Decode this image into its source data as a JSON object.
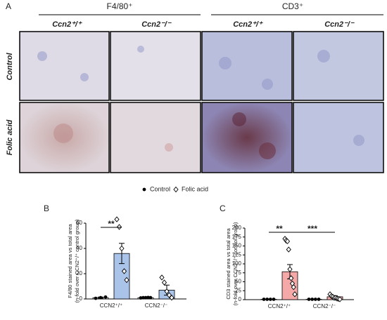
{
  "panel_a": {
    "label": "A",
    "groups": [
      "F4/80⁺",
      "CD3⁺"
    ],
    "columns": [
      "Ccn2⁺/⁺",
      "Ccn2⁻/⁻",
      "Ccn2⁺/⁺",
      "Ccn2⁻/⁻"
    ],
    "rows": [
      "Control",
      "Folic acid"
    ]
  },
  "legend": {
    "position": "top-center"
  },
  "chart_data": [
    {
      "type": "bar",
      "panel": "B",
      "y_label": [
        "F4/80 stained area vs total area",
        "(n-fold over CCN2⁺/⁺ control group)"
      ],
      "categories": [
        "CCN2⁺/⁺",
        "CCN2⁻/⁻"
      ],
      "ylim": [
        0,
        60
      ],
      "yticks": [
        0,
        20,
        40,
        60
      ],
      "series": [
        {
          "name": "Control",
          "marker": "circle",
          "color": "#ffffff",
          "values": [
            1,
            1
          ],
          "errors": [
            0.5,
            0.3
          ],
          "points": [
            [
              0.5,
              1,
              1.5
            ],
            [
              0.8,
              1,
              1,
              1.2,
              1
            ]
          ]
        },
        {
          "name": "Folic acid",
          "marker": "diamond",
          "color": "#a9c4e8",
          "values": [
            36,
            7
          ],
          "errors": [
            8,
            4
          ],
          "points": [
            [
              63,
              57,
              40,
              22,
              15
            ],
            [
              17,
              13,
              6,
              3,
              1
            ]
          ]
        }
      ],
      "annotations": [
        "**"
      ]
    },
    {
      "type": "bar",
      "panel": "C",
      "y_label": [
        "CD3 stained area vs total area",
        "(n-fold over CCN2⁺/⁺ control group)"
      ],
      "categories": [
        "CCN2⁺/⁺",
        "CCN2⁻/⁻"
      ],
      "ylim": [
        0,
        200
      ],
      "yticks": [
        0,
        25,
        50,
        75,
        100,
        125,
        150,
        175,
        200
      ],
      "series": [
        {
          "marker": "circle",
          "color": "#ffffff",
          "values": [
            1,
            1
          ],
          "errors": [
            0.5,
            0.5
          ],
          "points": [
            [
              1,
              1,
              1,
              1
            ],
            [
              1,
              1,
              1,
              1
            ]
          ]
        },
        {
          "marker": "diamond",
          "color": "#f4a9a8",
          "values": [
            78,
            8
          ],
          "errors": [
            20,
            3
          ],
          "points": [
            [
              170,
              165,
              163,
              140,
              85,
              60,
              45,
              35,
              15
            ],
            [
              15,
              10,
              8,
              5,
              5,
              3,
              2,
              1
            ]
          ]
        }
      ],
      "annotations": [
        "**",
        "***"
      ]
    }
  ]
}
